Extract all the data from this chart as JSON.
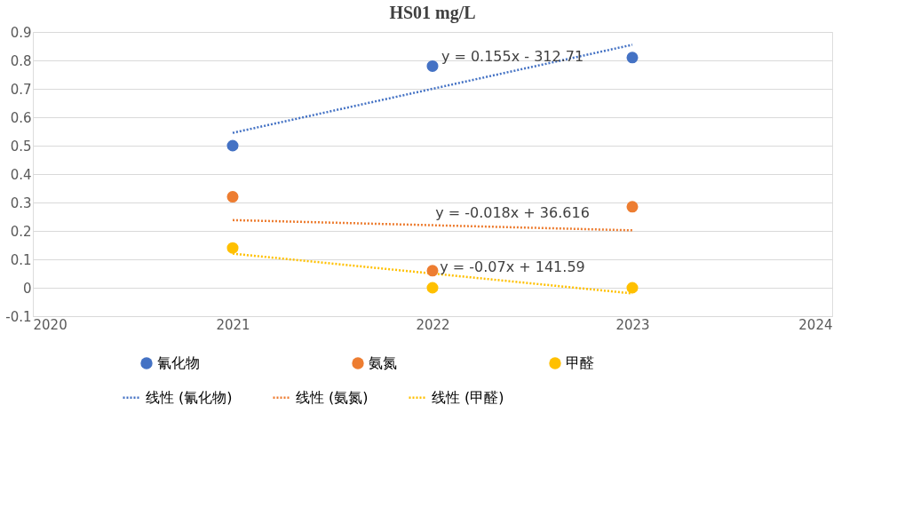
{
  "chart_data": {
    "type": "scatter",
    "title": "HS01   mg/L",
    "xlim": [
      2020,
      2024
    ],
    "xticks": [
      2020,
      2021,
      2022,
      2023,
      2024
    ],
    "ylim": [
      -0.1,
      0.9
    ],
    "yticks": [
      -0.1,
      0,
      0.1,
      0.2,
      0.3,
      0.4,
      0.5,
      0.6,
      0.7,
      0.8,
      0.9
    ],
    "grid": "y",
    "legend": "bottom",
    "series": [
      {
        "name": "氰化物",
        "marker": "circle",
        "color": "#4472c4",
        "x": [
          2021,
          2022,
          2023
        ],
        "values": [
          0.5,
          0.78,
          0.81
        ]
      },
      {
        "name": "氨氮",
        "marker": "circle",
        "color": "#ed7d31",
        "x": [
          2021,
          2022,
          2023
        ],
        "values": [
          0.32,
          0.06,
          0.285
        ]
      },
      {
        "name": "甲醛",
        "marker": "circle",
        "color": "#ffc000",
        "x": [
          2021,
          2022,
          2023
        ],
        "values": [
          0.14,
          0.0,
          0.0
        ]
      },
      {
        "name": "线性 (氰化物)",
        "type": "line",
        "line_style": "dotted",
        "color": "#4472c4",
        "x": [
          2021,
          2023
        ],
        "values": [
          0.545,
          0.855
        ]
      },
      {
        "name": "线性 (氨氮)",
        "type": "line",
        "line_style": "dotted",
        "color": "#ed7d31",
        "x": [
          2021,
          2023
        ],
        "values": [
          0.238,
          0.202
        ]
      },
      {
        "name": "线性 (甲醛)",
        "type": "line",
        "line_style": "dotted",
        "color": "#ffc000",
        "x": [
          2021,
          2023
        ],
        "values": [
          0.12,
          -0.02
        ]
      }
    ],
    "annotations": [
      "y = 0.155x - 312.71",
      "y = -0.018x + 36.616",
      "y = -0.07x + 141.59"
    ]
  }
}
